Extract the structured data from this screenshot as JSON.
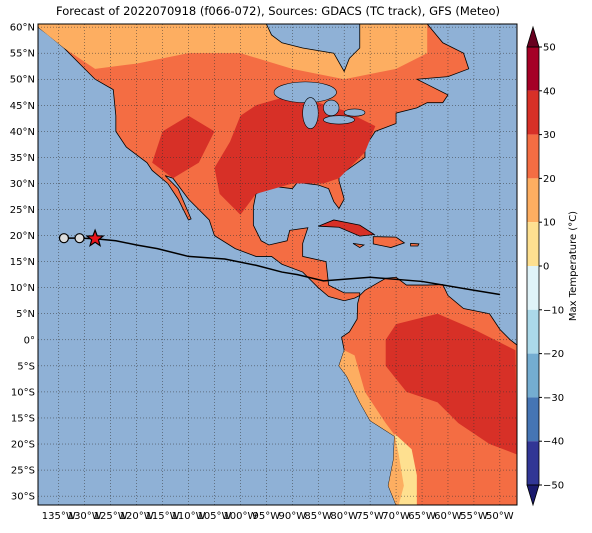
{
  "map": {
    "title": "Forecast of 2022070918 (f066-072), Sources: GDACS (TC track), GFS (Meteo)",
    "lonlim": [
      -139,
      -46.7
    ],
    "latlim": [
      -31.7,
      60.6
    ],
    "lon_ticks": [
      {
        "value": -135,
        "label": "135°W"
      },
      {
        "value": -130,
        "label": "130°W"
      },
      {
        "value": -125,
        "label": "125°W"
      },
      {
        "value": -120,
        "label": "120°W"
      },
      {
        "value": -115,
        "label": "115°W"
      },
      {
        "value": -110,
        "label": "110°W"
      },
      {
        "value": -105,
        "label": "105°W"
      },
      {
        "value": -100,
        "label": "100°W"
      },
      {
        "value": -95,
        "label": "95°W"
      },
      {
        "value": -90,
        "label": "90°W"
      },
      {
        "value": -85,
        "label": "85°W"
      },
      {
        "value": -80,
        "label": "80°W"
      },
      {
        "value": -75,
        "label": "75°W"
      },
      {
        "value": -70,
        "label": "70°W"
      },
      {
        "value": -65,
        "label": "65°W"
      },
      {
        "value": -60,
        "label": "60°W"
      },
      {
        "value": -55,
        "label": "55°W"
      },
      {
        "value": -50,
        "label": "50°W"
      }
    ],
    "lat_ticks": [
      {
        "value": 60,
        "label": "60°N"
      },
      {
        "value": 55,
        "label": "55°N"
      },
      {
        "value": 50,
        "label": "50°N"
      },
      {
        "value": 45,
        "label": "45°N"
      },
      {
        "value": 40,
        "label": "40°N"
      },
      {
        "value": 35,
        "label": "35°N"
      },
      {
        "value": 30,
        "label": "30°N"
      },
      {
        "value": 25,
        "label": "25°N"
      },
      {
        "value": 20,
        "label": "20°N"
      },
      {
        "value": 15,
        "label": "15°N"
      },
      {
        "value": 10,
        "label": "10°N"
      },
      {
        "value": 5,
        "label": "5°N"
      },
      {
        "value": 0,
        "label": "0°"
      },
      {
        "value": -5,
        "label": "5°S"
      },
      {
        "value": -10,
        "label": "10°S"
      },
      {
        "value": -15,
        "label": "15°S"
      },
      {
        "value": -20,
        "label": "20°S"
      },
      {
        "value": -25,
        "label": "25°S"
      },
      {
        "value": -30,
        "label": "30°S"
      }
    ],
    "track": {
      "lon": [
        -134,
        -131,
        -128,
        -124,
        -120,
        -116,
        -110,
        -103,
        -97,
        -92,
        -89,
        -84,
        -75,
        -65,
        -55,
        -50
      ],
      "lat": [
        19.5,
        19.5,
        19.4,
        19,
        18.2,
        17.5,
        16,
        15.5,
        14.3,
        13,
        12.5,
        11.3,
        12,
        11.2,
        9.5,
        8.7
      ]
    },
    "markers": [
      {
        "lon": -134,
        "lat": 19.5,
        "symbol": "circle"
      },
      {
        "lon": -131,
        "lat": 19.5,
        "symbol": "circle"
      },
      {
        "lon": -128,
        "lat": 19.4,
        "symbol": "star"
      }
    ],
    "colorbar": {
      "label": "Max Temperature (°C)",
      "lim": [
        -50,
        50
      ],
      "ticks": [
        {
          "value": 50,
          "label": "50"
        },
        {
          "value": 40,
          "label": "40"
        },
        {
          "value": 30,
          "label": "30"
        },
        {
          "value": 20,
          "label": "20"
        },
        {
          "value": 10,
          "label": "10"
        },
        {
          "value": 0,
          "label": "0"
        },
        {
          "value": -10,
          "label": "−10"
        },
        {
          "value": -20,
          "label": "−20"
        },
        {
          "value": -30,
          "label": "−30"
        },
        {
          "value": -40,
          "label": "−40"
        },
        {
          "value": -50,
          "label": "−50"
        }
      ],
      "colors": [
        "#a50026",
        "#d73027",
        "#f46d43",
        "#fdae61",
        "#fee090",
        "#e0f3f8",
        "#abd9e9",
        "#74add1",
        "#4575b4",
        "#313695"
      ],
      "over_color": "#67001f",
      "under_color": "#1a1a6e"
    }
  }
}
